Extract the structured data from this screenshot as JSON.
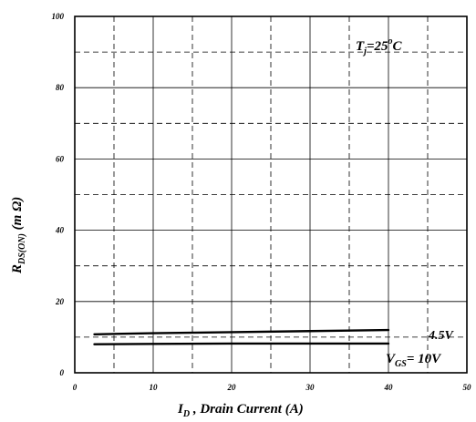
{
  "chart_data": {
    "type": "line",
    "title": "",
    "xlabel": {
      "main": "I",
      "subscript": "D",
      "rest": " , Drain Current (A)"
    },
    "ylabel": {
      "main": "R",
      "subscript": "DS(ON)",
      "rest": " (m Ω)"
    },
    "xlim": [
      0,
      50
    ],
    "ylim": [
      0,
      100
    ],
    "x_ticks": [
      0,
      10,
      20,
      30,
      40,
      50
    ],
    "y_ticks": [
      0,
      20,
      40,
      60,
      80,
      100
    ],
    "grid_dashed_x": [
      5,
      15,
      25,
      35,
      45
    ],
    "grid_dashed_y": [
      10,
      30,
      50,
      70,
      90
    ],
    "grid": true,
    "annotation": {
      "main": "T",
      "subscript": "j",
      "eq": "=25",
      "sup": "o",
      "unit": "C"
    },
    "series": [
      {
        "name": "4.5V",
        "x": [
          2.5,
          10,
          20,
          30,
          40
        ],
        "y": [
          10.8,
          11.1,
          11.4,
          11.7,
          12.0
        ]
      },
      {
        "name_parts": {
          "main": "V",
          "subscript": "GS",
          "rest": "= 10V"
        },
        "x": [
          2.5,
          10,
          20,
          30,
          40
        ],
        "y": [
          8.0,
          8.1,
          8.2,
          8.2,
          8.2
        ]
      }
    ],
    "colors": {
      "line": "#000000",
      "grid": "#000000"
    }
  }
}
